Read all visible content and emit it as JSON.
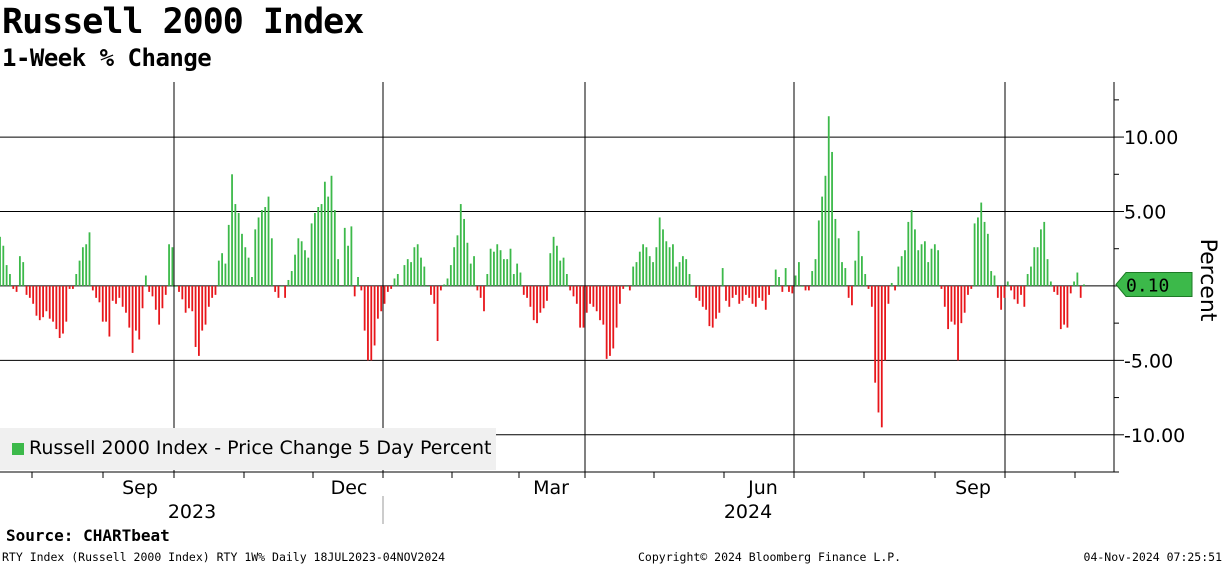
{
  "title": "Russell 2000 Index",
  "subtitle": "1-Week % Change",
  "source": "Source: CHARTbeat",
  "footer": {
    "left": "RTY Index (Russell 2000 Index) RTY 1W%  Daily 18JUL2023-04NOV2024",
    "center": "Copyright© 2024 Bloomberg Finance L.P.",
    "right": "04-Nov-2024 07:25:51"
  },
  "colors": {
    "positive": "#3cb94a",
    "negative": "#e8161b",
    "badge": "#3cb94a"
  },
  "chart_data": {
    "type": "bar",
    "ylabel": "Percent",
    "ylim": [
      -12.5,
      13.7
    ],
    "yticks": [
      10,
      5,
      -5,
      -10
    ],
    "ytick_labels": [
      "10.00",
      "5.00",
      "-5.00",
      "-10.00"
    ],
    "x_month_labels": [
      "Sep",
      "Dec",
      "Mar",
      "Jun",
      "Sep"
    ],
    "x_year_labels": [
      "2023",
      "2024"
    ],
    "last_value": 0.1,
    "last_value_label": "0.10",
    "legend": [
      "Russell 2000 Index - Price Change 5 Day Percent"
    ],
    "grid": true,
    "legend_position": "bottom-left",
    "series": [
      {
        "name": "Russell 2000 Index - Price Change 5 Day Percent",
        "values": [
          3.3,
          2.7,
          1.4,
          0.8,
          -0.2,
          -0.4,
          2.0,
          1.6,
          -0.6,
          -0.8,
          -1.2,
          -2.0,
          -2.3,
          -2.1,
          -1.7,
          -2.2,
          -2.4,
          -2.9,
          -3.5,
          -3.2,
          -2.4,
          -0.2,
          -0.2,
          0.8,
          1.7,
          2.6,
          2.8,
          3.6,
          -0.3,
          -0.8,
          -1.1,
          -2.4,
          -2.4,
          -3.4,
          -1.0,
          -1.2,
          -0.8,
          -1.4,
          -1.8,
          -2.8,
          -4.5,
          -3.0,
          -3.6,
          -1.5,
          0.7,
          -0.4,
          -0.7,
          -1.6,
          -2.6,
          -1.5,
          -0.6,
          2.8,
          2.6,
          0.0,
          -0.4,
          -0.9,
          -1.8,
          -1.5,
          -1.7,
          -4.1,
          -4.7,
          -3.0,
          -2.6,
          -1.4,
          -0.8,
          -0.6,
          1.7,
          2.2,
          1.5,
          4.1,
          7.5,
          5.5,
          4.9,
          3.5,
          2.6,
          1.9,
          0.6,
          3.8,
          4.6,
          5.1,
          5.3,
          6.0,
          3.2,
          -0.4,
          -0.8,
          0.0,
          -0.8,
          0.4,
          1.0,
          2.1,
          3.2,
          3.0,
          2.4,
          1.9,
          4.2,
          4.9,
          5.3,
          5.5,
          7.0,
          6.0,
          7.4,
          5.1,
          1.8,
          0.0,
          3.9,
          2.7,
          4.0,
          -0.7,
          0.6,
          -0.3,
          -3.0,
          -5.0,
          -5.0,
          -4.0,
          -2.2,
          -1.7,
          -1.2,
          -0.4,
          -0.2,
          0.5,
          0.8,
          0.0,
          1.4,
          1.8,
          1.6,
          2.6,
          2.8,
          1.9,
          1.3,
          0.0,
          -0.6,
          -1.2,
          -3.7,
          -0.3,
          0.1,
          0.5,
          1.4,
          2.6,
          3.4,
          5.5,
          4.5,
          2.9,
          1.5,
          2.0,
          -0.3,
          -0.8,
          -1.7,
          0.8,
          2.5,
          2.3,
          2.8,
          2.4,
          1.8,
          1.8,
          2.5,
          0.8,
          1.5,
          0.9,
          -0.6,
          -0.8,
          -1.4,
          -2.3,
          -2.5,
          -1.8,
          -1.5,
          -1.0,
          2.2,
          3.3,
          2.7,
          1.7,
          1.9,
          0.8,
          -0.3,
          -0.7,
          -1.2,
          -2.8,
          -2.8,
          -1.8,
          -1.2,
          -1.4,
          -1.7,
          -2.3,
          -2.6,
          -4.9,
          -4.7,
          -4.2,
          -2.8,
          -1.2,
          -0.2,
          0.0,
          -0.3,
          1.3,
          1.6,
          2.3,
          2.8,
          2.6,
          2.0,
          1.6,
          2.6,
          4.6,
          3.8,
          3.0,
          2.6,
          2.8,
          1.3,
          1.6,
          2.0,
          1.8,
          0.8,
          0.0,
          -0.8,
          -1.0,
          -1.4,
          -1.6,
          -2.7,
          -2.8,
          -2.2,
          -1.8,
          1.2,
          -1.0,
          -1.4,
          -0.8,
          -0.6,
          -1.2,
          -1.0,
          -0.6,
          -0.8,
          -1.2,
          -1.4,
          -0.8,
          -1.0,
          -1.6,
          -0.6,
          0.0,
          1.1,
          0.6,
          -0.4,
          1.2,
          -0.4,
          -0.5,
          0.7,
          1.6,
          0.0,
          -0.3,
          -0.3,
          1.0,
          1.8,
          4.4,
          6.0,
          7.4,
          11.4,
          9.0,
          4.5,
          3.2,
          1.6,
          1.2,
          -0.8,
          -1.3,
          1.7,
          3.7,
          2.0,
          0.8,
          -0.2,
          -1.4,
          -6.5,
          -8.5,
          -9.5,
          -5.0,
          -1.2,
          0.2,
          -0.3,
          1.3,
          2.0,
          2.4,
          4.3,
          5.1,
          3.8,
          2.4,
          2.8,
          3.0,
          1.6,
          2.5,
          2.8,
          2.4,
          -0.2,
          -1.4,
          -2.9,
          -2.4,
          -2.6,
          -5.0,
          -2.5,
          -1.8,
          -0.6,
          -0.2,
          4.2,
          4.6,
          5.6,
          4.3,
          3.5,
          1.0,
          0.7,
          -0.8,
          -1.6,
          -0.8,
          0.3,
          -0.3,
          -0.9,
          -1.2,
          -0.6,
          -1.4,
          0.8,
          1.3,
          2.6,
          2.6,
          3.8,
          4.3,
          1.8,
          0.3,
          -0.4,
          -0.6,
          -2.9,
          -2.6,
          -2.8,
          -0.5,
          0.3,
          0.9,
          -0.8,
          0.1
        ]
      }
    ]
  }
}
